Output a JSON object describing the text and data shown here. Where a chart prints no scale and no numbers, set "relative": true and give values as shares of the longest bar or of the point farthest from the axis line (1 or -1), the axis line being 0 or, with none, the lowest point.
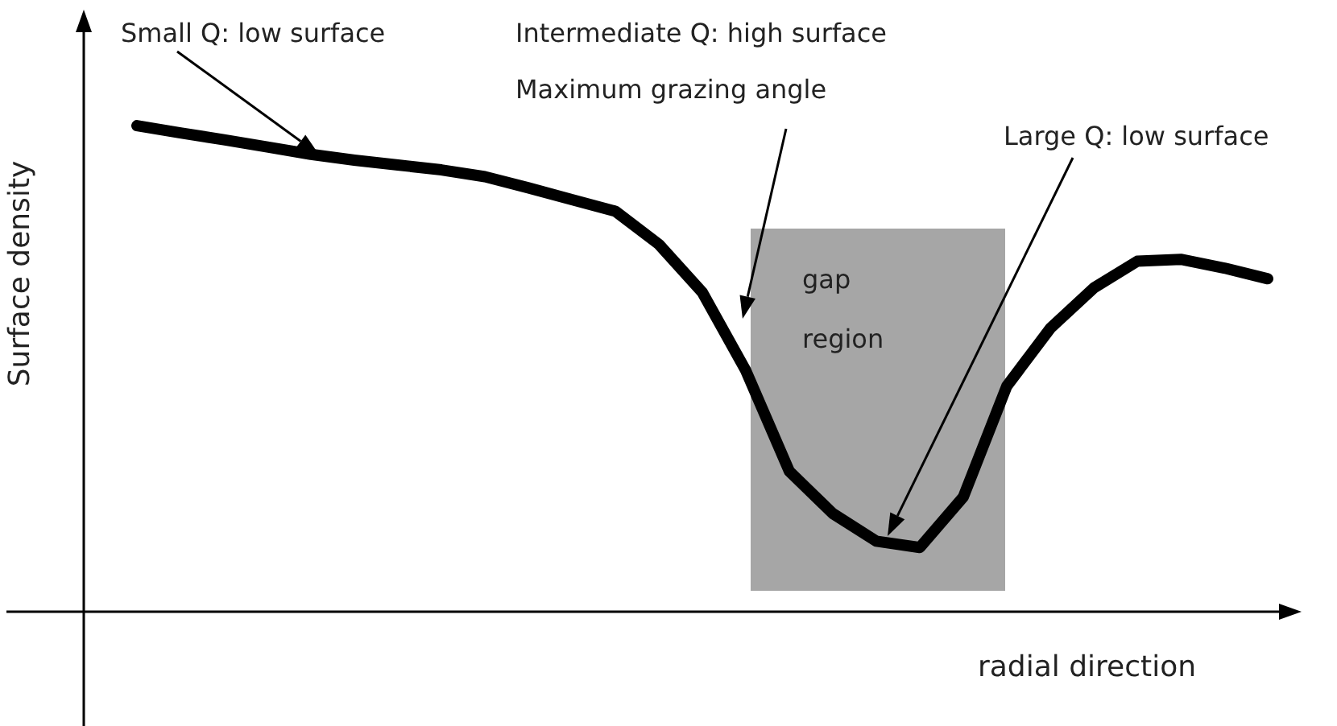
{
  "chart_data": {
    "type": "line",
    "relative": true,
    "xlabel": "radial direction",
    "ylabel": "Surface density",
    "annotations": [
      "Small Q: low surface",
      "Intermediate Q: high surface",
      "Maximum grazing angle",
      "Large Q: low surface",
      "gap region"
    ],
    "categories": [
      null,
      null,
      null,
      null,
      null,
      null,
      null,
      null,
      null,
      null,
      null,
      null,
      null,
      null,
      null,
      null,
      null,
      null,
      null,
      null,
      null,
      null,
      null,
      null,
      null,
      null,
      null
    ],
    "series": [
      {
        "color": "#000000",
        "values": [
          1.0,
          0.985,
          0.971,
          0.956,
          0.941,
          0.929,
          0.919,
          0.909,
          0.895,
          0.872,
          0.848,
          0.824,
          0.756,
          0.657,
          0.496,
          0.289,
          0.202,
          0.145,
          0.132,
          0.236,
          0.464,
          0.583,
          0.666,
          0.721,
          0.725,
          0.707,
          0.685
        ]
      }
    ]
  }
}
